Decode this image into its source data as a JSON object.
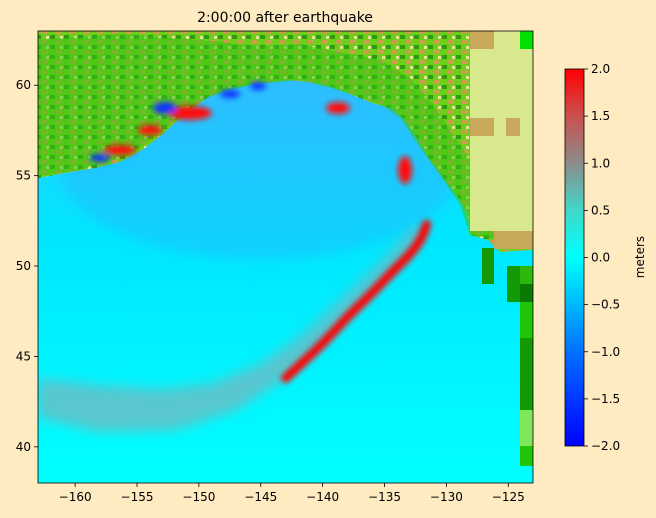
{
  "chart_data": {
    "type": "heatmap",
    "title": "2:00:00 after earthquake",
    "xlabel": "",
    "ylabel": "",
    "xlim": [
      -163,
      -123
    ],
    "ylim": [
      38,
      63
    ],
    "x_ticks": [
      -160,
      -155,
      -150,
      -145,
      -140,
      -135,
      -130,
      -125
    ],
    "y_ticks": [
      40,
      45,
      50,
      55,
      60
    ],
    "x_tick_labels": [
      "−160",
      "−155",
      "−150",
      "−145",
      "−140",
      "−135",
      "−130",
      "−125"
    ],
    "y_tick_labels": [
      "40",
      "45",
      "50",
      "55",
      "60"
    ],
    "colorbar": {
      "label": "meters",
      "range": [
        -2.0,
        2.0
      ],
      "ticks": [
        2.0,
        1.5,
        1.0,
        0.5,
        0.0,
        -0.5,
        -1.0,
        -1.5,
        -2.0
      ],
      "tick_labels": [
        "2.0",
        "1.5",
        "1.0",
        "0.5",
        "0.0",
        "−0.5",
        "−1.0",
        "−1.5",
        "−2.0"
      ],
      "stops": [
        {
          "value": -2.0,
          "color": "#0000ff"
        },
        {
          "value": -1.0,
          "color": "#0070ff"
        },
        {
          "value": -0.5,
          "color": "#00b8ff"
        },
        {
          "value": 0.0,
          "color": "#00ffff"
        },
        {
          "value": 0.5,
          "color": "#40d8c8"
        },
        {
          "value": 1.0,
          "color": "#8c8c8c"
        },
        {
          "value": 1.5,
          "color": "#cc5050"
        },
        {
          "value": 2.0,
          "color": "#ff0000"
        }
      ]
    },
    "wavefront_front": [
      [
        -163,
        41.6
      ],
      [
        -158,
        40.8
      ],
      [
        -152,
        40.9
      ],
      [
        -147,
        42.0
      ],
      [
        -143,
        43.8
      ],
      [
        -140,
        45.7
      ],
      [
        -138,
        47.2
      ],
      [
        -136,
        48.5
      ],
      [
        -134.5,
        49.6
      ],
      [
        -133,
        50.6
      ],
      [
        -132,
        51.5
      ],
      [
        -131.6,
        52.3
      ]
    ],
    "wavefront_rear": [
      [
        -163,
        43.8
      ],
      [
        -158,
        43.4
      ],
      [
        -153,
        43.2
      ],
      [
        -149,
        43.5
      ],
      [
        -145,
        44.6
      ],
      [
        -142,
        46.0
      ],
      [
        -140,
        47.2
      ],
      [
        -138.5,
        48.2
      ],
      [
        -137,
        49.1
      ],
      [
        -135.5,
        50.1
      ],
      [
        -134,
        51.1
      ],
      [
        -133,
        52.0
      ]
    ],
    "wavefront_peak_value": 2.0
  }
}
